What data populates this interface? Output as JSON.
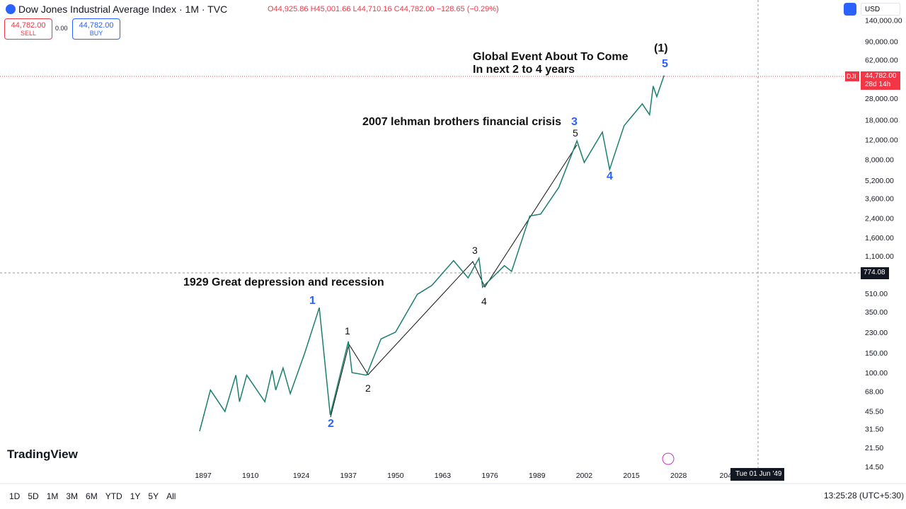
{
  "header": {
    "title": "Dow Jones Industrial Average Index · 1M · TVC",
    "open": "O44,925.86",
    "high": "H45,001.66",
    "low": "L44,710.16",
    "close": "C44,782.00",
    "change": "−128.65 (−0.29%)",
    "sell_price": "44,782.00",
    "sell": "SELL",
    "spread": "0.00",
    "buy_price": "44,782.00",
    "buy": "BUY",
    "currency": "USD"
  },
  "chart_data": {
    "type": "line",
    "color": "#1a7f6e",
    "log_scale": true,
    "x": [
      1896,
      1899,
      1903,
      1906,
      1907,
      1909,
      1914,
      1916,
      1917,
      1919,
      1921,
      1925,
      1929,
      1932,
      1937,
      1938,
      1942,
      1946,
      1950,
      1956,
      1960,
      1966,
      1970,
      1973,
      1974,
      1980,
      1982,
      1987,
      1990,
      1995,
      2000,
      2002,
      2007,
      2009,
      2013,
      2018,
      2020,
      2021,
      2022,
      2024
    ],
    "values": [
      30,
      70,
      45,
      95,
      55,
      95,
      55,
      105,
      70,
      110,
      65,
      150,
      380,
      42,
      190,
      100,
      95,
      200,
      230,
      500,
      600,
      1000,
      700,
      1050,
      580,
      900,
      800,
      2500,
      2600,
      4500,
      11700,
      7500,
      14000,
      6500,
      16000,
      25000,
      20000,
      36000,
      29000,
      44782
    ],
    "xlim": [
      1841,
      2078
    ],
    "xticks": [
      1897,
      1910,
      1924,
      1937,
      1950,
      1963,
      1976,
      1989,
      2002,
      2015,
      2028,
      {
        "value": 2041,
        "label": "204"
      }
    ],
    "ylim": [
      13.5,
      158000
    ],
    "yticks": [
      {
        "value": 140000,
        "label": "140,000.00"
      },
      {
        "value": 90000,
        "label": "90,000.00"
      },
      {
        "value": 62000,
        "label": "62,000.00"
      },
      {
        "value": 28000,
        "label": "28,000.00"
      },
      {
        "value": 18000,
        "label": "18,000.00"
      },
      {
        "value": 12000,
        "label": "12,000.00"
      },
      {
        "value": 8000,
        "label": "8,000.00"
      },
      {
        "value": 5200,
        "label": "5,200.00"
      },
      {
        "value": 3600,
        "label": "3,600.00"
      },
      {
        "value": 2400,
        "label": "2,400.00"
      },
      {
        "value": 1600,
        "label": "1,600.00"
      },
      {
        "value": 1100,
        "label": "1,100.00"
      },
      {
        "value": 510,
        "label": "510.00"
      },
      {
        "value": 350,
        "label": "350.00"
      },
      {
        "value": 230,
        "label": "230.00"
      },
      {
        "value": 150,
        "label": "150.00"
      },
      {
        "value": 100,
        "label": "100.00"
      },
      {
        "value": 68,
        "label": "68.00"
      },
      {
        "value": 45.5,
        "label": "45.50"
      },
      {
        "value": 31.5,
        "label": "31.50"
      },
      {
        "value": 21.5,
        "label": "21.50"
      },
      {
        "value": 14.5,
        "label": "14.50"
      }
    ]
  },
  "price_tag": {
    "symbol": "DJI",
    "price": "44,782.00",
    "countdown": "28d 14h"
  },
  "crosshair": {
    "price": "774.08",
    "date": "Tue 01 Jun '49"
  },
  "annotations": {
    "global": "Global Event About To Come",
    "global2": "In next 2 to 4 years",
    "lehman": "2007 lehman brothers financial crisis",
    "depression": "1929 Great depression and recession",
    "w1_major": "(1)",
    "w5_major": "5",
    "w3_major": "3",
    "w4_major": "4",
    "w1": "1",
    "w2": "2",
    "m1": "1",
    "m2": "2",
    "m3": "3",
    "m4": "4",
    "m5": "5"
  },
  "logo": "TradingView",
  "toolbar": {
    "ranges": [
      "1D",
      "5D",
      "1M",
      "3M",
      "6M",
      "YTD",
      "1Y",
      "5Y",
      "All"
    ],
    "clock": "13:25:28 (UTC+5:30)"
  }
}
